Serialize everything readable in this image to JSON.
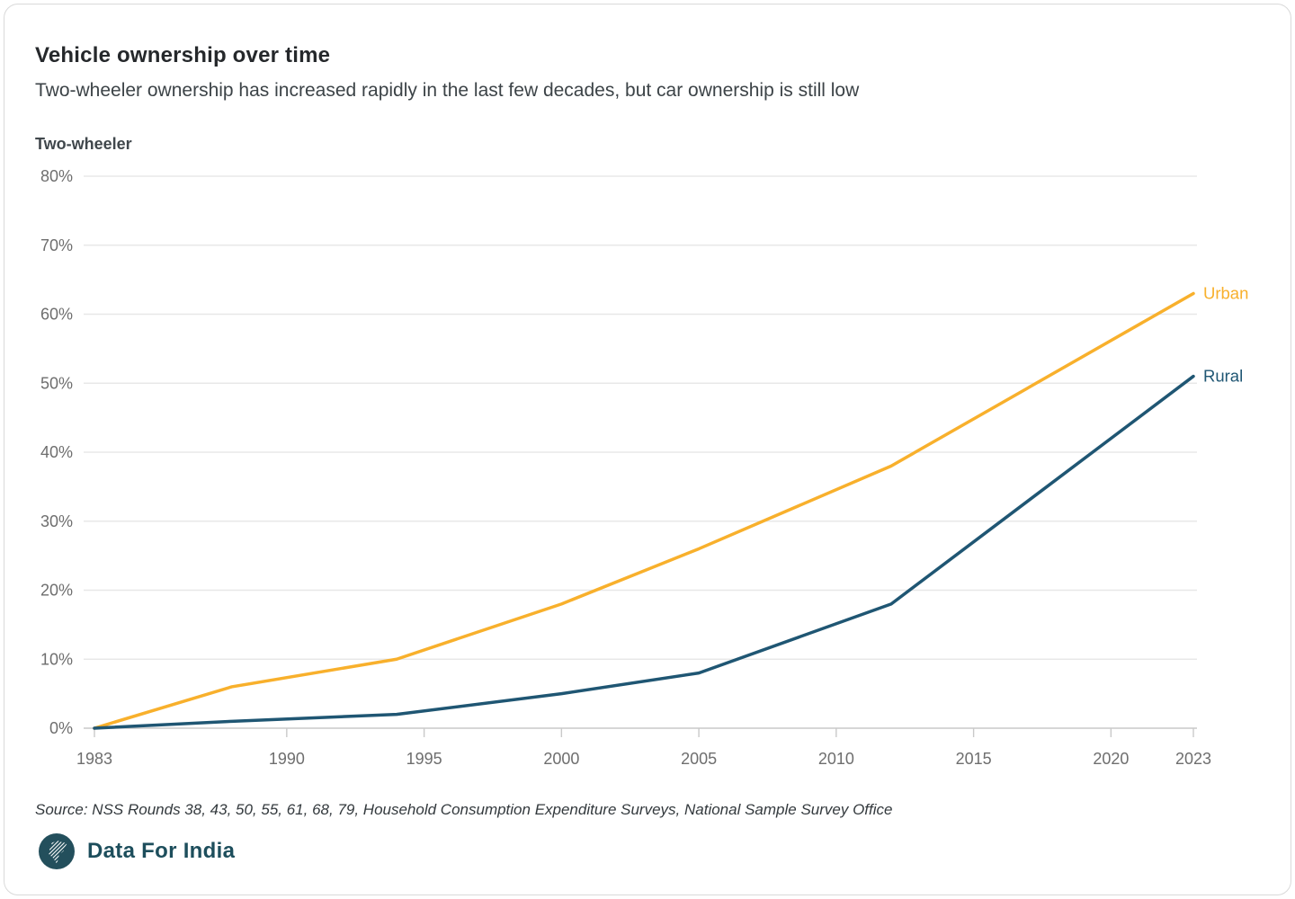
{
  "card": {
    "title": "Vehicle ownership over time",
    "subtitle": "Two-wheeler ownership has increased rapidly in the last few decades, but car ownership is still low",
    "source": "Source: NSS Rounds 38, 43, 50, 55, 61, 68, 79, Household Consumption Expenditure Surveys, National Sample Survey Office",
    "brand": "Data For India"
  },
  "chart_data": {
    "type": "line",
    "panel_label": "Two-wheeler",
    "unit": "%",
    "xlim": [
      1983,
      2023
    ],
    "ylim": [
      0,
      80
    ],
    "yticks": [
      0,
      10,
      20,
      30,
      40,
      50,
      60,
      70,
      80
    ],
    "xticks": [
      1983,
      1990,
      1995,
      2000,
      2005,
      2010,
      2015,
      2020,
      2023
    ],
    "grid": "horizontal",
    "legend": "line-end-labels",
    "series": [
      {
        "name": "Urban",
        "color": "#F8B02C",
        "points": [
          [
            1983,
            0
          ],
          [
            1988,
            6
          ],
          [
            1994,
            10
          ],
          [
            2000,
            18
          ],
          [
            2005,
            26
          ],
          [
            2012,
            38
          ],
          [
            2023,
            63
          ]
        ]
      },
      {
        "name": "Rural",
        "color": "#1F5673",
        "points": [
          [
            1983,
            0
          ],
          [
            1988,
            1
          ],
          [
            1994,
            2
          ],
          [
            2000,
            5
          ],
          [
            2005,
            8
          ],
          [
            2012,
            18
          ],
          [
            2023,
            51
          ]
        ]
      }
    ]
  }
}
